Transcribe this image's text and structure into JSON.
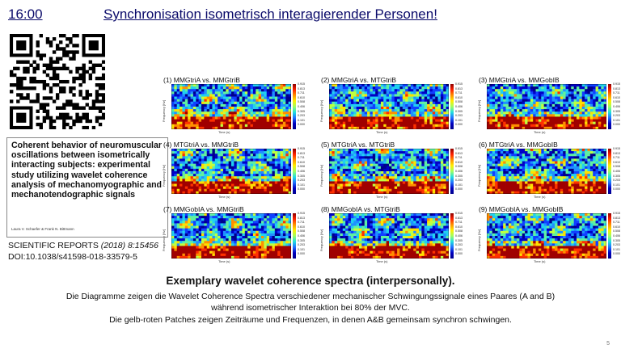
{
  "header": {
    "time": "16:00",
    "title": "Synchronisation isometrisch interagierender Personen!"
  },
  "paper": {
    "title": "Coherent behavior of neuromuscular oscillations between isometrically interacting subjects: experimental study utilizing wavelet coherence analysis of mechanomyographic and mechanotendographic signals",
    "authors": "Laura V. Schaefer & Frank N. Bittmann",
    "journal_name": "SCIENTIFIC REPORTS",
    "journal_ref": " (2018) 8:15456",
    "doi": "DOI:10.1038/s41598-018-33579-5"
  },
  "figure": {
    "panels": [
      {
        "label": "(1) MMGtriA vs. MMGtriB"
      },
      {
        "label": "(2) MMGtriA vs. MTGtriB"
      },
      {
        "label": "(3) MMGtriA vs. MMGobIB"
      },
      {
        "label": "(4) MTGtriA vs. MMGtriB"
      },
      {
        "label": "(5) MTGtriA vs. MTGtriB"
      },
      {
        "label": "(6) MTGtriA vs. MMGobIB"
      },
      {
        "label": "(7) MMGobIA vs. MMGtriB"
      },
      {
        "label": "(8) MMGobIA vs. MTGtriB"
      },
      {
        "label": "(9) MMGobIA vs. MMGobIB"
      }
    ],
    "colorbar_ticks": [
      "0.915",
      "0.813",
      "0.711",
      "0.610",
      "0.508",
      "0.406",
      "0.305",
      "0.203",
      "0.101",
      "0.000"
    ],
    "x_axis_label": "Time (s)",
    "y_axis_label": "Frequency [Hz]",
    "colors": {
      "low": "#00008b",
      "mid": "#20e0e0",
      "high": "#8b0000"
    }
  },
  "caption": {
    "title": "Exemplary wavelet coherence spectra (interpersonally).",
    "line1": "Die Diagramme zeigen die Wavelet Coherence Spectra verschiedener mechanischer Schwingungssignale eines Paares (A and B)",
    "line2": "während isometrischer Interaktion bei 80% der MVC.",
    "line3": "Die gelb-roten Patches zeigen Zeiträume und Frequenzen, in denen A&B gemeinsam synchron schwingen."
  },
  "page_number": "5"
}
